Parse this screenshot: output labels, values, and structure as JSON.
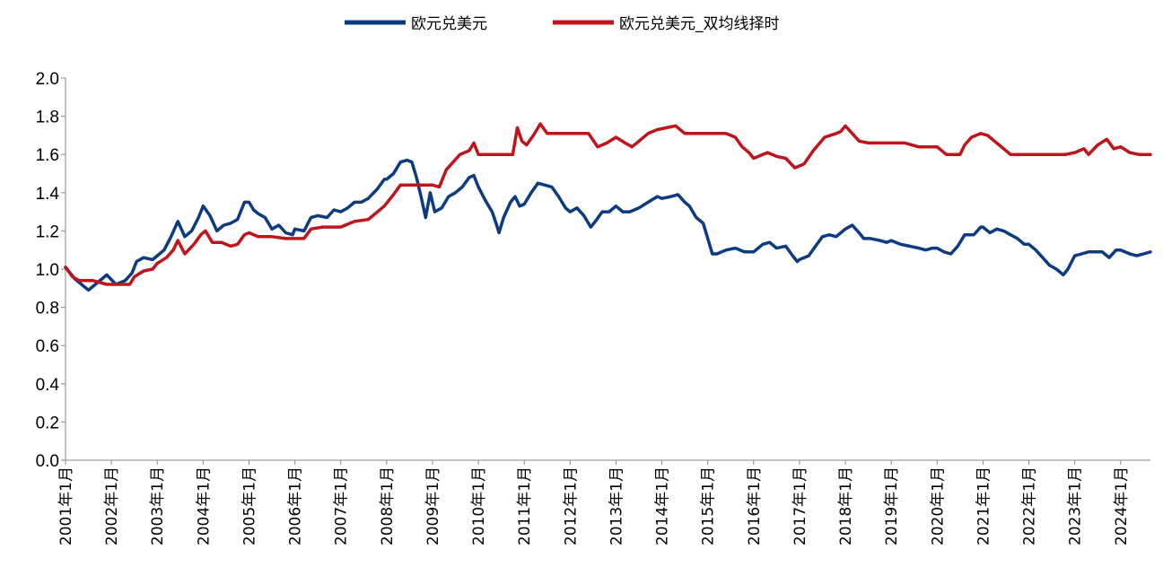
{
  "chart_data": {
    "type": "line",
    "title": "",
    "xlabel": "",
    "ylabel": "",
    "ylim": [
      0,
      2.0
    ],
    "y_ticks": [
      "0.0",
      "0.2",
      "0.4",
      "0.6",
      "0.8",
      "1.0",
      "1.2",
      "1.4",
      "1.6",
      "1.8",
      "2.0"
    ],
    "x_ticks": [
      "2001年1月",
      "2002年1月",
      "2003年1月",
      "2004年1月",
      "2005年1月",
      "2006年1月",
      "2007年1月",
      "2008年1月",
      "2009年1月",
      "2010年1月",
      "2011年1月",
      "2012年1月",
      "2013年1月",
      "2014年1月",
      "2015年1月",
      "2016年1月",
      "2017年1月",
      "2018年1月",
      "2019年1月",
      "2020年1月",
      "2021年1月",
      "2022年1月",
      "2023年1月",
      "2024年1月"
    ],
    "x_range": [
      2001.0,
      2024.65
    ],
    "legend_position": "top",
    "series": [
      {
        "name": "欧元兑美元",
        "color": "#0d3b82",
        "points": [
          [
            2001.0,
            1.01
          ],
          [
            2001.2,
            0.95
          ],
          [
            2001.4,
            0.91
          ],
          [
            2001.5,
            0.89
          ],
          [
            2001.7,
            0.93
          ],
          [
            2001.9,
            0.97
          ],
          [
            2002.1,
            0.92
          ],
          [
            2002.3,
            0.94
          ],
          [
            2002.45,
            0.98
          ],
          [
            2002.55,
            1.04
          ],
          [
            2002.7,
            1.06
          ],
          [
            2002.9,
            1.05
          ],
          [
            2003.0,
            1.07
          ],
          [
            2003.15,
            1.1
          ],
          [
            2003.3,
            1.17
          ],
          [
            2003.45,
            1.25
          ],
          [
            2003.6,
            1.17
          ],
          [
            2003.75,
            1.2
          ],
          [
            2003.9,
            1.27
          ],
          [
            2004.0,
            1.33
          ],
          [
            2004.15,
            1.28
          ],
          [
            2004.3,
            1.2
          ],
          [
            2004.45,
            1.23
          ],
          [
            2004.6,
            1.24
          ],
          [
            2004.75,
            1.26
          ],
          [
            2004.9,
            1.35
          ],
          [
            2005.0,
            1.35
          ],
          [
            2005.1,
            1.31
          ],
          [
            2005.2,
            1.29
          ],
          [
            2005.35,
            1.27
          ],
          [
            2005.5,
            1.21
          ],
          [
            2005.65,
            1.23
          ],
          [
            2005.8,
            1.19
          ],
          [
            2005.95,
            1.18
          ],
          [
            2006.0,
            1.21
          ],
          [
            2006.2,
            1.2
          ],
          [
            2006.35,
            1.27
          ],
          [
            2006.5,
            1.28
          ],
          [
            2006.7,
            1.27
          ],
          [
            2006.85,
            1.31
          ],
          [
            2007.0,
            1.3
          ],
          [
            2007.15,
            1.32
          ],
          [
            2007.3,
            1.35
          ],
          [
            2007.45,
            1.35
          ],
          [
            2007.6,
            1.37
          ],
          [
            2007.8,
            1.42
          ],
          [
            2007.95,
            1.47
          ],
          [
            2008.0,
            1.47
          ],
          [
            2008.15,
            1.5
          ],
          [
            2008.3,
            1.56
          ],
          [
            2008.45,
            1.57
          ],
          [
            2008.55,
            1.56
          ],
          [
            2008.65,
            1.48
          ],
          [
            2008.75,
            1.38
          ],
          [
            2008.85,
            1.27
          ],
          [
            2008.95,
            1.4
          ],
          [
            2009.05,
            1.3
          ],
          [
            2009.2,
            1.32
          ],
          [
            2009.35,
            1.38
          ],
          [
            2009.5,
            1.4
          ],
          [
            2009.65,
            1.43
          ],
          [
            2009.8,
            1.48
          ],
          [
            2009.9,
            1.49
          ],
          [
            2010.0,
            1.43
          ],
          [
            2010.15,
            1.36
          ],
          [
            2010.3,
            1.3
          ],
          [
            2010.4,
            1.23
          ],
          [
            2010.45,
            1.19
          ],
          [
            2010.55,
            1.27
          ],
          [
            2010.7,
            1.35
          ],
          [
            2010.8,
            1.38
          ],
          [
            2010.9,
            1.33
          ],
          [
            2011.0,
            1.34
          ],
          [
            2011.15,
            1.4
          ],
          [
            2011.3,
            1.45
          ],
          [
            2011.45,
            1.44
          ],
          [
            2011.6,
            1.43
          ],
          [
            2011.75,
            1.38
          ],
          [
            2011.9,
            1.32
          ],
          [
            2012.0,
            1.3
          ],
          [
            2012.15,
            1.32
          ],
          [
            2012.3,
            1.28
          ],
          [
            2012.45,
            1.22
          ],
          [
            2012.55,
            1.25
          ],
          [
            2012.7,
            1.3
          ],
          [
            2012.85,
            1.3
          ],
          [
            2013.0,
            1.33
          ],
          [
            2013.15,
            1.3
          ],
          [
            2013.3,
            1.3
          ],
          [
            2013.5,
            1.32
          ],
          [
            2013.7,
            1.35
          ],
          [
            2013.9,
            1.38
          ],
          [
            2014.0,
            1.37
          ],
          [
            2014.2,
            1.38
          ],
          [
            2014.35,
            1.39
          ],
          [
            2014.5,
            1.35
          ],
          [
            2014.6,
            1.33
          ],
          [
            2014.75,
            1.27
          ],
          [
            2014.9,
            1.24
          ],
          [
            2015.0,
            1.16
          ],
          [
            2015.1,
            1.08
          ],
          [
            2015.2,
            1.08
          ],
          [
            2015.4,
            1.1
          ],
          [
            2015.6,
            1.11
          ],
          [
            2015.8,
            1.09
          ],
          [
            2015.95,
            1.09
          ],
          [
            2016.0,
            1.09
          ],
          [
            2016.2,
            1.13
          ],
          [
            2016.35,
            1.14
          ],
          [
            2016.5,
            1.11
          ],
          [
            2016.7,
            1.12
          ],
          [
            2016.85,
            1.07
          ],
          [
            2016.95,
            1.04
          ],
          [
            2017.0,
            1.05
          ],
          [
            2017.2,
            1.07
          ],
          [
            2017.35,
            1.12
          ],
          [
            2017.5,
            1.17
          ],
          [
            2017.65,
            1.18
          ],
          [
            2017.8,
            1.17
          ],
          [
            2017.95,
            1.2
          ],
          [
            2018.0,
            1.21
          ],
          [
            2018.15,
            1.23
          ],
          [
            2018.3,
            1.19
          ],
          [
            2018.4,
            1.16
          ],
          [
            2018.55,
            1.16
          ],
          [
            2018.75,
            1.15
          ],
          [
            2018.9,
            1.14
          ],
          [
            2019.0,
            1.15
          ],
          [
            2019.2,
            1.13
          ],
          [
            2019.4,
            1.12
          ],
          [
            2019.6,
            1.11
          ],
          [
            2019.75,
            1.1
          ],
          [
            2019.9,
            1.11
          ],
          [
            2020.0,
            1.11
          ],
          [
            2020.15,
            1.09
          ],
          [
            2020.3,
            1.08
          ],
          [
            2020.45,
            1.12
          ],
          [
            2020.6,
            1.18
          ],
          [
            2020.8,
            1.18
          ],
          [
            2020.95,
            1.22
          ],
          [
            2021.0,
            1.22
          ],
          [
            2021.15,
            1.19
          ],
          [
            2021.3,
            1.21
          ],
          [
            2021.45,
            1.2
          ],
          [
            2021.6,
            1.18
          ],
          [
            2021.75,
            1.16
          ],
          [
            2021.9,
            1.13
          ],
          [
            2022.0,
            1.13
          ],
          [
            2022.15,
            1.1
          ],
          [
            2022.3,
            1.06
          ],
          [
            2022.45,
            1.02
          ],
          [
            2022.6,
            1.0
          ],
          [
            2022.75,
            0.97
          ],
          [
            2022.85,
            1.0
          ],
          [
            2023.0,
            1.07
          ],
          [
            2023.15,
            1.08
          ],
          [
            2023.3,
            1.09
          ],
          [
            2023.45,
            1.09
          ],
          [
            2023.6,
            1.09
          ],
          [
            2023.75,
            1.06
          ],
          [
            2023.9,
            1.1
          ],
          [
            2024.0,
            1.1
          ],
          [
            2024.2,
            1.08
          ],
          [
            2024.35,
            1.07
          ],
          [
            2024.5,
            1.08
          ],
          [
            2024.65,
            1.09
          ]
        ]
      },
      {
        "name": "欧元兑美元_双均线择时",
        "color": "#c0141c",
        "points": [
          [
            2001.0,
            1.01
          ],
          [
            2001.15,
            0.96
          ],
          [
            2001.3,
            0.94
          ],
          [
            2001.6,
            0.94
          ],
          [
            2001.9,
            0.92
          ],
          [
            2002.2,
            0.92
          ],
          [
            2002.4,
            0.92
          ],
          [
            2002.5,
            0.96
          ],
          [
            2002.7,
            0.99
          ],
          [
            2002.9,
            1.0
          ],
          [
            2003.0,
            1.03
          ],
          [
            2003.2,
            1.06
          ],
          [
            2003.35,
            1.1
          ],
          [
            2003.45,
            1.15
          ],
          [
            2003.6,
            1.08
          ],
          [
            2003.8,
            1.13
          ],
          [
            2003.95,
            1.18
          ],
          [
            2004.05,
            1.2
          ],
          [
            2004.2,
            1.14
          ],
          [
            2004.4,
            1.14
          ],
          [
            2004.6,
            1.12
          ],
          [
            2004.75,
            1.13
          ],
          [
            2004.9,
            1.18
          ],
          [
            2005.0,
            1.19
          ],
          [
            2005.2,
            1.17
          ],
          [
            2005.5,
            1.17
          ],
          [
            2005.8,
            1.16
          ],
          [
            2006.0,
            1.16
          ],
          [
            2006.2,
            1.16
          ],
          [
            2006.35,
            1.21
          ],
          [
            2006.6,
            1.22
          ],
          [
            2006.8,
            1.22
          ],
          [
            2007.0,
            1.22
          ],
          [
            2007.3,
            1.25
          ],
          [
            2007.6,
            1.26
          ],
          [
            2007.8,
            1.3
          ],
          [
            2007.95,
            1.33
          ],
          [
            2008.15,
            1.39
          ],
          [
            2008.3,
            1.44
          ],
          [
            2008.5,
            1.44
          ],
          [
            2008.8,
            1.44
          ],
          [
            2009.0,
            1.44
          ],
          [
            2009.15,
            1.43
          ],
          [
            2009.3,
            1.52
          ],
          [
            2009.45,
            1.56
          ],
          [
            2009.6,
            1.6
          ],
          [
            2009.8,
            1.62
          ],
          [
            2009.9,
            1.66
          ],
          [
            2010.0,
            1.6
          ],
          [
            2010.3,
            1.6
          ],
          [
            2010.6,
            1.6
          ],
          [
            2010.75,
            1.6
          ],
          [
            2010.85,
            1.74
          ],
          [
            2010.95,
            1.67
          ],
          [
            2011.05,
            1.65
          ],
          [
            2011.2,
            1.7
          ],
          [
            2011.35,
            1.76
          ],
          [
            2011.5,
            1.71
          ],
          [
            2011.7,
            1.71
          ],
          [
            2011.9,
            1.71
          ],
          [
            2012.2,
            1.71
          ],
          [
            2012.4,
            1.71
          ],
          [
            2012.6,
            1.64
          ],
          [
            2012.8,
            1.66
          ],
          [
            2013.0,
            1.69
          ],
          [
            2013.2,
            1.66
          ],
          [
            2013.35,
            1.64
          ],
          [
            2013.5,
            1.67
          ],
          [
            2013.7,
            1.71
          ],
          [
            2013.9,
            1.73
          ],
          [
            2014.1,
            1.74
          ],
          [
            2014.3,
            1.75
          ],
          [
            2014.5,
            1.71
          ],
          [
            2014.8,
            1.71
          ],
          [
            2015.0,
            1.71
          ],
          [
            2015.4,
            1.71
          ],
          [
            2015.6,
            1.69
          ],
          [
            2015.75,
            1.64
          ],
          [
            2015.9,
            1.61
          ],
          [
            2016.0,
            1.58
          ],
          [
            2016.3,
            1.61
          ],
          [
            2016.5,
            1.59
          ],
          [
            2016.7,
            1.58
          ],
          [
            2016.9,
            1.53
          ],
          [
            2017.1,
            1.55
          ],
          [
            2017.3,
            1.62
          ],
          [
            2017.55,
            1.69
          ],
          [
            2017.8,
            1.71
          ],
          [
            2017.9,
            1.72
          ],
          [
            2018.0,
            1.75
          ],
          [
            2018.15,
            1.71
          ],
          [
            2018.3,
            1.67
          ],
          [
            2018.5,
            1.66
          ],
          [
            2018.8,
            1.66
          ],
          [
            2019.0,
            1.66
          ],
          [
            2019.3,
            1.66
          ],
          [
            2019.6,
            1.64
          ],
          [
            2019.8,
            1.64
          ],
          [
            2020.0,
            1.64
          ],
          [
            2020.2,
            1.6
          ],
          [
            2020.5,
            1.6
          ],
          [
            2020.6,
            1.65
          ],
          [
            2020.75,
            1.69
          ],
          [
            2020.95,
            1.71
          ],
          [
            2021.1,
            1.7
          ],
          [
            2021.3,
            1.66
          ],
          [
            2021.45,
            1.63
          ],
          [
            2021.6,
            1.6
          ],
          [
            2021.8,
            1.6
          ],
          [
            2022.0,
            1.6
          ],
          [
            2022.4,
            1.6
          ],
          [
            2022.8,
            1.6
          ],
          [
            2023.0,
            1.61
          ],
          [
            2023.2,
            1.63
          ],
          [
            2023.3,
            1.6
          ],
          [
            2023.5,
            1.65
          ],
          [
            2023.7,
            1.68
          ],
          [
            2023.85,
            1.63
          ],
          [
            2024.0,
            1.64
          ],
          [
            2024.2,
            1.61
          ],
          [
            2024.4,
            1.6
          ],
          [
            2024.65,
            1.6
          ]
        ]
      }
    ]
  }
}
